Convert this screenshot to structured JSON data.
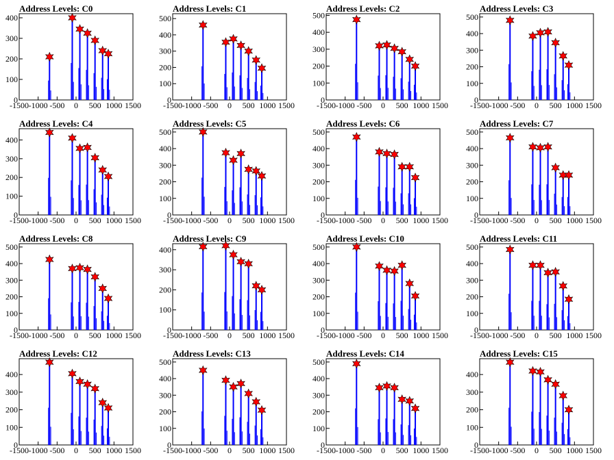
{
  "colors": {
    "histogram": "#0000ff",
    "marker": "#ff0000",
    "marker_edge": "#000000",
    "axes": "#000000"
  },
  "chart_data": [
    {
      "type": "histogram",
      "title": "Address Levels: C0",
      "xlim": [
        -1500,
        1500
      ],
      "ylim": [
        0,
        420
      ],
      "yticks": [
        0,
        100,
        200,
        300,
        400
      ],
      "xticks": [
        -1500,
        -1000,
        -500,
        0,
        500,
        1000,
        1500
      ],
      "peaks": [
        {
          "x": -700,
          "y": 210
        },
        {
          "x": -100,
          "y": 400
        },
        {
          "x": 100,
          "y": 345
        },
        {
          "x": 300,
          "y": 325
        },
        {
          "x": 500,
          "y": 290
        },
        {
          "x": 700,
          "y": 240
        },
        {
          "x": 850,
          "y": 225
        }
      ]
    },
    {
      "type": "histogram",
      "title": "Address Levels: C1",
      "xlim": [
        -1500,
        1500
      ],
      "ylim": [
        0,
        530
      ],
      "yticks": [
        0,
        100,
        200,
        300,
        400,
        500
      ],
      "xticks": [
        -1500,
        -1000,
        -500,
        0,
        500,
        1000,
        1500
      ],
      "peaks": [
        {
          "x": -700,
          "y": 460
        },
        {
          "x": -100,
          "y": 355
        },
        {
          "x": 100,
          "y": 375
        },
        {
          "x": 300,
          "y": 335
        },
        {
          "x": 500,
          "y": 300
        },
        {
          "x": 700,
          "y": 245
        },
        {
          "x": 850,
          "y": 195
        }
      ]
    },
    {
      "type": "histogram",
      "title": "Address Levels: C2",
      "xlim": [
        -1500,
        1500
      ],
      "ylim": [
        0,
        510
      ],
      "yticks": [
        0,
        100,
        200,
        300,
        400,
        500
      ],
      "xticks": [
        -1500,
        -1000,
        -500,
        0,
        500,
        1000,
        1500
      ],
      "peaks": [
        {
          "x": -700,
          "y": 475
        },
        {
          "x": -100,
          "y": 320
        },
        {
          "x": 100,
          "y": 325
        },
        {
          "x": 300,
          "y": 305
        },
        {
          "x": 500,
          "y": 285
        },
        {
          "x": 700,
          "y": 240
        },
        {
          "x": 850,
          "y": 200
        }
      ]
    },
    {
      "type": "histogram",
      "title": "Address Levels: C3",
      "xlim": [
        -1500,
        1500
      ],
      "ylim": [
        0,
        520
      ],
      "yticks": [
        0,
        100,
        200,
        300,
        400,
        500
      ],
      "xticks": [
        -1500,
        -1000,
        -500,
        0,
        500,
        1000,
        1500
      ],
      "peaks": [
        {
          "x": -700,
          "y": 480
        },
        {
          "x": -100,
          "y": 385
        },
        {
          "x": 100,
          "y": 405
        },
        {
          "x": 300,
          "y": 410
        },
        {
          "x": 500,
          "y": 345
        },
        {
          "x": 700,
          "y": 265
        },
        {
          "x": 850,
          "y": 210
        }
      ]
    },
    {
      "type": "histogram",
      "title": "Address Levels: C4",
      "xlim": [
        -1500,
        1500
      ],
      "ylim": [
        0,
        460
      ],
      "yticks": [
        0,
        100,
        200,
        300,
        400
      ],
      "xticks": [
        -1500,
        -1000,
        -500,
        0,
        500,
        1000,
        1500
      ],
      "peaks": [
        {
          "x": -700,
          "y": 440
        },
        {
          "x": -100,
          "y": 410
        },
        {
          "x": 100,
          "y": 355
        },
        {
          "x": 300,
          "y": 360
        },
        {
          "x": 500,
          "y": 305
        },
        {
          "x": 700,
          "y": 240
        },
        {
          "x": 850,
          "y": 205
        }
      ]
    },
    {
      "type": "histogram",
      "title": "Address Levels: C5",
      "xlim": [
        -1500,
        1500
      ],
      "ylim": [
        0,
        520
      ],
      "yticks": [
        0,
        100,
        200,
        300,
        400,
        500
      ],
      "xticks": [
        -1500,
        -1000,
        -500,
        0,
        500,
        1000,
        1500
      ],
      "peaks": [
        {
          "x": -700,
          "y": 500
        },
        {
          "x": -100,
          "y": 375
        },
        {
          "x": 100,
          "y": 330
        },
        {
          "x": 300,
          "y": 370
        },
        {
          "x": 500,
          "y": 275
        },
        {
          "x": 700,
          "y": 265
        },
        {
          "x": 850,
          "y": 235
        }
      ]
    },
    {
      "type": "histogram",
      "title": "Address Levels: C6",
      "xlim": [
        -1500,
        1500
      ],
      "ylim": [
        0,
        520
      ],
      "yticks": [
        0,
        100,
        200,
        300,
        400,
        500
      ],
      "xticks": [
        -1500,
        -1000,
        -500,
        0,
        500,
        1000,
        1500
      ],
      "peaks": [
        {
          "x": -700,
          "y": 470
        },
        {
          "x": -100,
          "y": 380
        },
        {
          "x": 100,
          "y": 370
        },
        {
          "x": 300,
          "y": 365
        },
        {
          "x": 500,
          "y": 290
        },
        {
          "x": 700,
          "y": 290
        },
        {
          "x": 850,
          "y": 225
        }
      ]
    },
    {
      "type": "histogram",
      "title": "Address Levels: C7",
      "xlim": [
        -1500,
        1500
      ],
      "ylim": [
        0,
        520
      ],
      "yticks": [
        0,
        100,
        200,
        300,
        400,
        500
      ],
      "xticks": [
        -1500,
        -1000,
        -500,
        0,
        500,
        1000,
        1500
      ],
      "peaks": [
        {
          "x": -700,
          "y": 465
        },
        {
          "x": -100,
          "y": 410
        },
        {
          "x": 100,
          "y": 405
        },
        {
          "x": 300,
          "y": 410
        },
        {
          "x": 500,
          "y": 285
        },
        {
          "x": 700,
          "y": 240
        },
        {
          "x": 850,
          "y": 240
        }
      ]
    },
    {
      "type": "histogram",
      "title": "Address Levels: C8",
      "xlim": [
        -1500,
        1500
      ],
      "ylim": [
        0,
        520
      ],
      "yticks": [
        0,
        100,
        200,
        300,
        400,
        500
      ],
      "xticks": [
        -1500,
        -1000,
        -500,
        0,
        500,
        1000,
        1500
      ],
      "peaks": [
        {
          "x": -700,
          "y": 425
        },
        {
          "x": -100,
          "y": 370
        },
        {
          "x": 100,
          "y": 375
        },
        {
          "x": 300,
          "y": 365
        },
        {
          "x": 500,
          "y": 320
        },
        {
          "x": 700,
          "y": 250
        },
        {
          "x": 850,
          "y": 190
        }
      ]
    },
    {
      "type": "histogram",
      "title": "Address Levels: C9",
      "xlim": [
        -1500,
        1500
      ],
      "ylim": [
        0,
        430
      ],
      "yticks": [
        0,
        100,
        200,
        300,
        400
      ],
      "xticks": [
        -1500,
        -1000,
        -500,
        0,
        500,
        1000,
        1500
      ],
      "peaks": [
        {
          "x": -700,
          "y": 415
        },
        {
          "x": -100,
          "y": 420
        },
        {
          "x": 100,
          "y": 375
        },
        {
          "x": 300,
          "y": 340
        },
        {
          "x": 500,
          "y": 330
        },
        {
          "x": 700,
          "y": 220
        },
        {
          "x": 850,
          "y": 200
        }
      ]
    },
    {
      "type": "histogram",
      "title": "Address Levels: C10",
      "xlim": [
        -1500,
        1500
      ],
      "ylim": [
        0,
        520
      ],
      "yticks": [
        0,
        100,
        200,
        300,
        400,
        500
      ],
      "xticks": [
        -1500,
        -1000,
        -500,
        0,
        500,
        1000,
        1500
      ],
      "peaks": [
        {
          "x": -700,
          "y": 500
        },
        {
          "x": -100,
          "y": 385
        },
        {
          "x": 100,
          "y": 360
        },
        {
          "x": 300,
          "y": 355
        },
        {
          "x": 500,
          "y": 390
        },
        {
          "x": 700,
          "y": 280
        },
        {
          "x": 850,
          "y": 205
        }
      ]
    },
    {
      "type": "histogram",
      "title": "Address Levels: C11",
      "xlim": [
        -1500,
        1500
      ],
      "ylim": [
        0,
        520
      ],
      "yticks": [
        0,
        100,
        200,
        300,
        400,
        500
      ],
      "xticks": [
        -1500,
        -1000,
        -500,
        0,
        500,
        1000,
        1500
      ],
      "peaks": [
        {
          "x": -700,
          "y": 485
        },
        {
          "x": -100,
          "y": 390
        },
        {
          "x": 100,
          "y": 390
        },
        {
          "x": 300,
          "y": 345
        },
        {
          "x": 500,
          "y": 350
        },
        {
          "x": 700,
          "y": 265
        },
        {
          "x": 850,
          "y": 185
        }
      ]
    },
    {
      "type": "histogram",
      "title": "Address Levels: C12",
      "xlim": [
        -1500,
        1500
      ],
      "ylim": [
        0,
        490
      ],
      "yticks": [
        0,
        100,
        200,
        300,
        400
      ],
      "xticks": [
        -1500,
        -1000,
        -500,
        0,
        500,
        1000,
        1500
      ],
      "peaks": [
        {
          "x": -700,
          "y": 470
        },
        {
          "x": -100,
          "y": 405
        },
        {
          "x": 100,
          "y": 360
        },
        {
          "x": 300,
          "y": 345
        },
        {
          "x": 500,
          "y": 320
        },
        {
          "x": 700,
          "y": 240
        },
        {
          "x": 850,
          "y": 210
        }
      ]
    },
    {
      "type": "histogram",
      "title": "Address Levels: C13",
      "xlim": [
        -1500,
        1500
      ],
      "ylim": [
        0,
        520
      ],
      "yticks": [
        0,
        100,
        200,
        300,
        400,
        500
      ],
      "xticks": [
        -1500,
        -1000,
        -500,
        0,
        500,
        1000,
        1500
      ],
      "peaks": [
        {
          "x": -700,
          "y": 450
        },
        {
          "x": -100,
          "y": 390
        },
        {
          "x": 100,
          "y": 350
        },
        {
          "x": 300,
          "y": 370
        },
        {
          "x": 500,
          "y": 310
        },
        {
          "x": 700,
          "y": 260
        },
        {
          "x": 850,
          "y": 210
        }
      ]
    },
    {
      "type": "histogram",
      "title": "Address Levels: C14",
      "xlim": [
        -1500,
        1500
      ],
      "ylim": [
        0,
        520
      ],
      "yticks": [
        0,
        100,
        200,
        300,
        400,
        500
      ],
      "xticks": [
        -1500,
        -1000,
        -500,
        0,
        500,
        1000,
        1500
      ],
      "peaks": [
        {
          "x": -700,
          "y": 490
        },
        {
          "x": -100,
          "y": 345
        },
        {
          "x": 100,
          "y": 355
        },
        {
          "x": 300,
          "y": 345
        },
        {
          "x": 500,
          "y": 275
        },
        {
          "x": 700,
          "y": 265
        },
        {
          "x": 850,
          "y": 220
        }
      ]
    },
    {
      "type": "histogram",
      "title": "Address Levels: C15",
      "xlim": [
        -1500,
        1500
      ],
      "ylim": [
        0,
        490
      ],
      "yticks": [
        0,
        100,
        200,
        300,
        400
      ],
      "xticks": [
        -1500,
        -1000,
        -500,
        0,
        500,
        1000,
        1500
      ],
      "peaks": [
        {
          "x": -700,
          "y": 470
        },
        {
          "x": -100,
          "y": 420
        },
        {
          "x": 100,
          "y": 415
        },
        {
          "x": 300,
          "y": 370
        },
        {
          "x": 500,
          "y": 345
        },
        {
          "x": 700,
          "y": 280
        },
        {
          "x": 850,
          "y": 200
        }
      ]
    }
  ]
}
